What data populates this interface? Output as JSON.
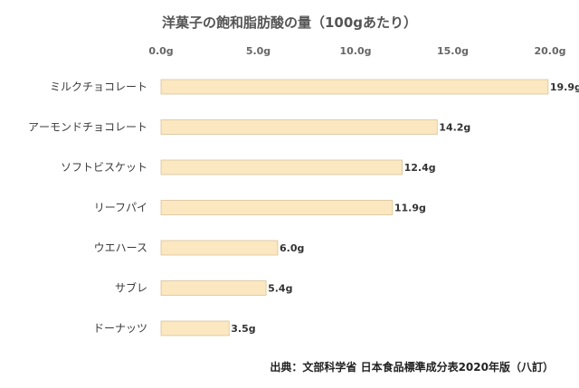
{
  "chart_data": {
    "type": "bar",
    "orientation": "horizontal",
    "title": "洋菓子の飽和脂肪酸の量（100gあたり）",
    "categories": [
      "ミルクチョコレート",
      "アーモンドチョコレート",
      "ソフトビスケット",
      "リーフパイ",
      "ウエハース",
      "サブレ",
      "ドーナッツ"
    ],
    "values": [
      19.9,
      14.2,
      12.4,
      11.9,
      6.0,
      5.4,
      3.5
    ],
    "value_labels": [
      "19.9g",
      "14.2g",
      "12.4g",
      "11.9g",
      "6.0g",
      "5.4g",
      "3.5g"
    ],
    "xlim": [
      0,
      20
    ],
    "x_ticks": [
      0,
      5,
      10,
      15,
      20
    ],
    "x_tick_labels": [
      "0.0g",
      "5.0g",
      "10.0g",
      "15.0g",
      "20.0g"
    ],
    "x_axis_position": "top",
    "grid": false,
    "bar_color": "#fbe7c0",
    "bar_stroke": "#d9c49a"
  },
  "source": "出典：文部科学省 日本食品標準成分表2020年版（八訂）"
}
